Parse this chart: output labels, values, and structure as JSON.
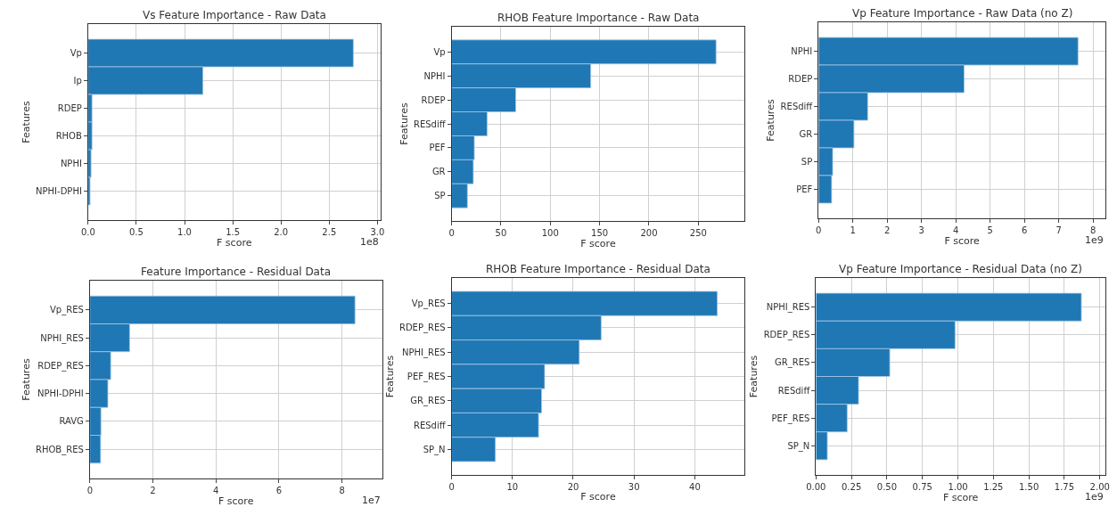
{
  "chart_data": [
    {
      "type": "bar",
      "orientation": "horizontal",
      "title": "Vs Feature Importance - Raw Data",
      "xlabel": "F score",
      "ylabel": "Features",
      "categories": [
        "Vp",
        "Ip",
        "RDEP",
        "RHOB",
        "NPHI",
        "NPHI-DPHI"
      ],
      "values": [
        2.75,
        1.19,
        0.04,
        0.04,
        0.03,
        0.02
      ],
      "color": "#1f77b4",
      "xlim": [
        0,
        3.03
      ],
      "xticks": [
        {
          "value": 0,
          "label": "0.0"
        },
        0.5,
        {
          "value": 1,
          "label": "1.0"
        },
        1.5,
        {
          "value": 2,
          "label": "2.0"
        },
        2.5,
        {
          "value": 3,
          "label": "3.0"
        }
      ],
      "grid": true,
      "annotations": [
        "1e8"
      ]
    },
    {
      "type": "bar",
      "orientation": "horizontal",
      "title": "RHOB Feature Importance - Raw Data",
      "xlabel": "F score",
      "ylabel": "Features",
      "categories": [
        "Vp",
        "NPHI",
        "RDEP",
        "RESdiff",
        "PEF",
        "GR",
        "SP"
      ],
      "values": [
        268,
        141,
        65,
        36,
        23,
        22,
        16
      ],
      "color": "#1f77b4",
      "xlim": [
        0,
        297
      ],
      "xticks": [
        0,
        50,
        100,
        150,
        200,
        250
      ],
      "grid": true
    },
    {
      "type": "bar",
      "orientation": "horizontal",
      "title": "Vp Feature Importance - Raw Data (no Z)",
      "xlabel": "F score",
      "ylabel": "Features",
      "categories": [
        "NPHI",
        "RDEP",
        "RESdiff",
        "GR",
        "SP",
        "PEF"
      ],
      "values": [
        7.56,
        4.24,
        1.43,
        1.03,
        0.41,
        0.38
      ],
      "color": "#1f77b4",
      "xlim": [
        0,
        8.36
      ],
      "xticks": [
        0,
        1,
        2,
        3,
        4,
        5,
        6,
        7,
        8
      ],
      "grid": true,
      "annotations": [
        "1e9"
      ]
    },
    {
      "type": "bar",
      "orientation": "horizontal",
      "title": "Feature Importance - Residual Data",
      "xlabel": "F score",
      "ylabel": "Features",
      "categories": [
        "Vp_RES",
        "NPHI_RES",
        "RDEP_RES",
        "NPHI-DPHI",
        "RAVG",
        "RHOB_RES"
      ],
      "values": [
        8.41,
        1.26,
        0.66,
        0.57,
        0.35,
        0.34
      ],
      "color": "#1f77b4",
      "xlim": [
        0,
        9.27
      ],
      "xticks": [
        0,
        2,
        4,
        6,
        8
      ],
      "grid": true,
      "annotations": [
        "1e7"
      ]
    },
    {
      "type": "bar",
      "orientation": "horizontal",
      "title": "RHOB Feature Importance - Residual Data",
      "xlabel": "F score",
      "ylabel": "Features",
      "categories": [
        "Vp_RES",
        "RDEP_RES",
        "NPHI_RES",
        "PEF_RES",
        "GR_RES",
        "RESdiff",
        "SP_N"
      ],
      "values": [
        43.7,
        24.6,
        21.0,
        15.3,
        14.8,
        14.3,
        7.2
      ],
      "color": "#1f77b4",
      "xlim": [
        0,
        48.2
      ],
      "xticks": [
        0,
        10,
        20,
        30,
        40
      ],
      "grid": true
    },
    {
      "type": "bar",
      "orientation": "horizontal",
      "title": "Vp Feature Importance - Residual Data (no Z)",
      "xlabel": "F score",
      "ylabel": "Features",
      "categories": [
        "NPHI_RES",
        "RDEP_RES",
        "GR_RES",
        "RESdiff",
        "PEF_RES",
        "SP_N"
      ],
      "values": [
        1.87,
        0.98,
        0.52,
        0.3,
        0.22,
        0.08
      ],
      "color": "#1f77b4",
      "xlim": [
        0,
        2.04
      ],
      "xticks": [
        {
          "value": 0,
          "label": "0.00"
        },
        0.25,
        {
          "value": 0.5,
          "label": "0.50"
        },
        0.75,
        {
          "value": 1,
          "label": "1.00"
        },
        1.25,
        {
          "value": 1.5,
          "label": "1.50"
        },
        1.75,
        {
          "value": 2,
          "label": "2.00"
        }
      ],
      "grid": true,
      "annotations": [
        "1e9"
      ]
    }
  ]
}
